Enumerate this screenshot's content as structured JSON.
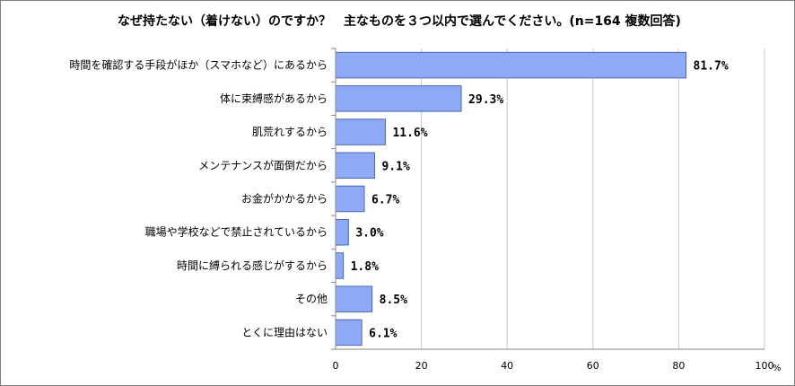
{
  "chart_data": {
    "type": "bar",
    "orientation": "horizontal",
    "title": "なぜ持たない（着けない）のですか？　主なものを３つ以内で選んでください。(n=164 複数回答)",
    "categories": [
      "時間を確認する手段がほか（スマホなど）にあるから",
      "体に束縛感があるから",
      "肌荒れするから",
      "メンテナンスが面倒だから",
      "お金がかかるから",
      "職場や学校などで禁止されているから",
      "時間に縛られる感じがするから",
      "その他",
      "とくに理由はない"
    ],
    "values": [
      81.7,
      29.3,
      11.6,
      9.1,
      6.7,
      3.0,
      1.8,
      8.5,
      6.1
    ],
    "value_labels": [
      "81.7%",
      "29.3%",
      "11.6%",
      "9.1%",
      "6.7%",
      "3.0%",
      "1.8%",
      "8.5%",
      "6.1%"
    ],
    "xlim": [
      0,
      100
    ],
    "xticks": [
      "0",
      "20",
      "40",
      "60",
      "80",
      "100"
    ],
    "x_unit": "%",
    "grid": "vertical",
    "bar_color": "#8eaaf6",
    "bar_edge_color": "#4d66b3",
    "grid_color": "#c8c8c8",
    "axis_color": "#888888"
  }
}
